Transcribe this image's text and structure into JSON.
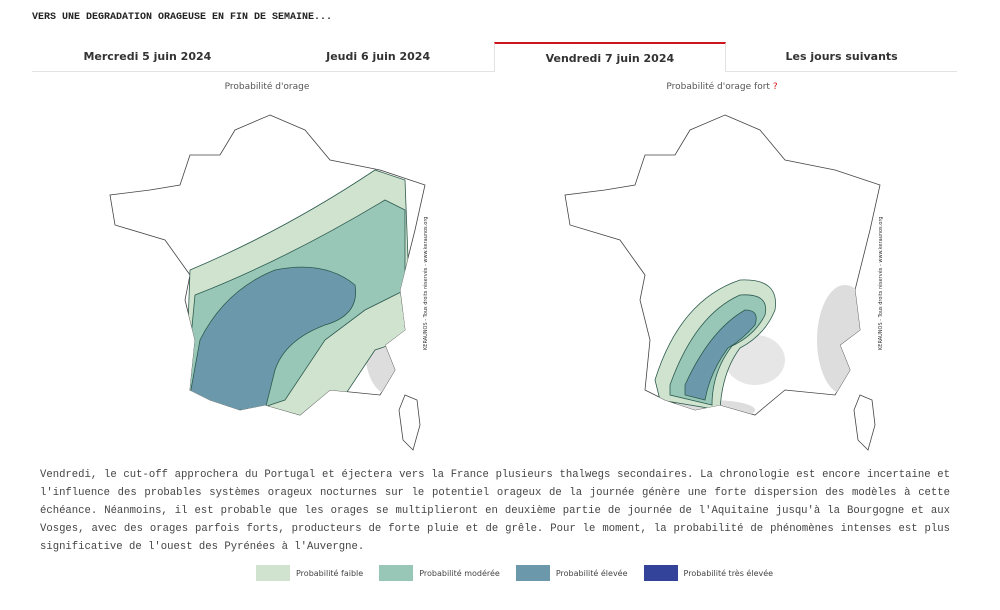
{
  "headline": "VERS UNE DEGRADATION ORAGEUSE EN FIN DE SEMAINE...",
  "tabs": [
    {
      "label": "Mercredi 5 juin 2024",
      "active": false
    },
    {
      "label": "Jeudi 6 juin 2024",
      "active": false
    },
    {
      "label": "Vendredi 7 juin 2024",
      "active": true
    },
    {
      "label": "Les jours suivants",
      "active": false
    }
  ],
  "maps": [
    {
      "title": "Probabilité d'orage"
    },
    {
      "title": "Probabilité d'orage fort",
      "help": "?"
    }
  ],
  "watermark": "KERAUNOS - Tous droits réservés - www.keraunos.org",
  "paragraph": "Vendredi, le cut-off approchera du Portugal et éjectera vers la France plusieurs thalwegs secondaires. La chronologie est encore incertaine et l'influence des probables systèmes orageux nocturnes sur le potentiel orageux de la journée génère une forte dispersion des modèles à cette échéance. Néanmoins, il est probable que les orages se multiplieront en deuxième partie de journée de l'Aquitaine jusqu'à la Bourgogne et aux Vosges, avec des orages parfois forts, producteurs de forte pluie et de grêle. Pour le moment, la probabilité de phénomènes intenses est plus significative de l'ouest des Pyrénées à l'Auvergne.",
  "legend": [
    {
      "label": "Probabilité faible",
      "color": "#cfe3cf"
    },
    {
      "label": "Probabilité modérée",
      "color": "#98c7b8"
    },
    {
      "label": "Probabilité élevée",
      "color": "#6b99ab"
    },
    {
      "label": "Probabilité très élevée",
      "color": "#34439a"
    }
  ]
}
